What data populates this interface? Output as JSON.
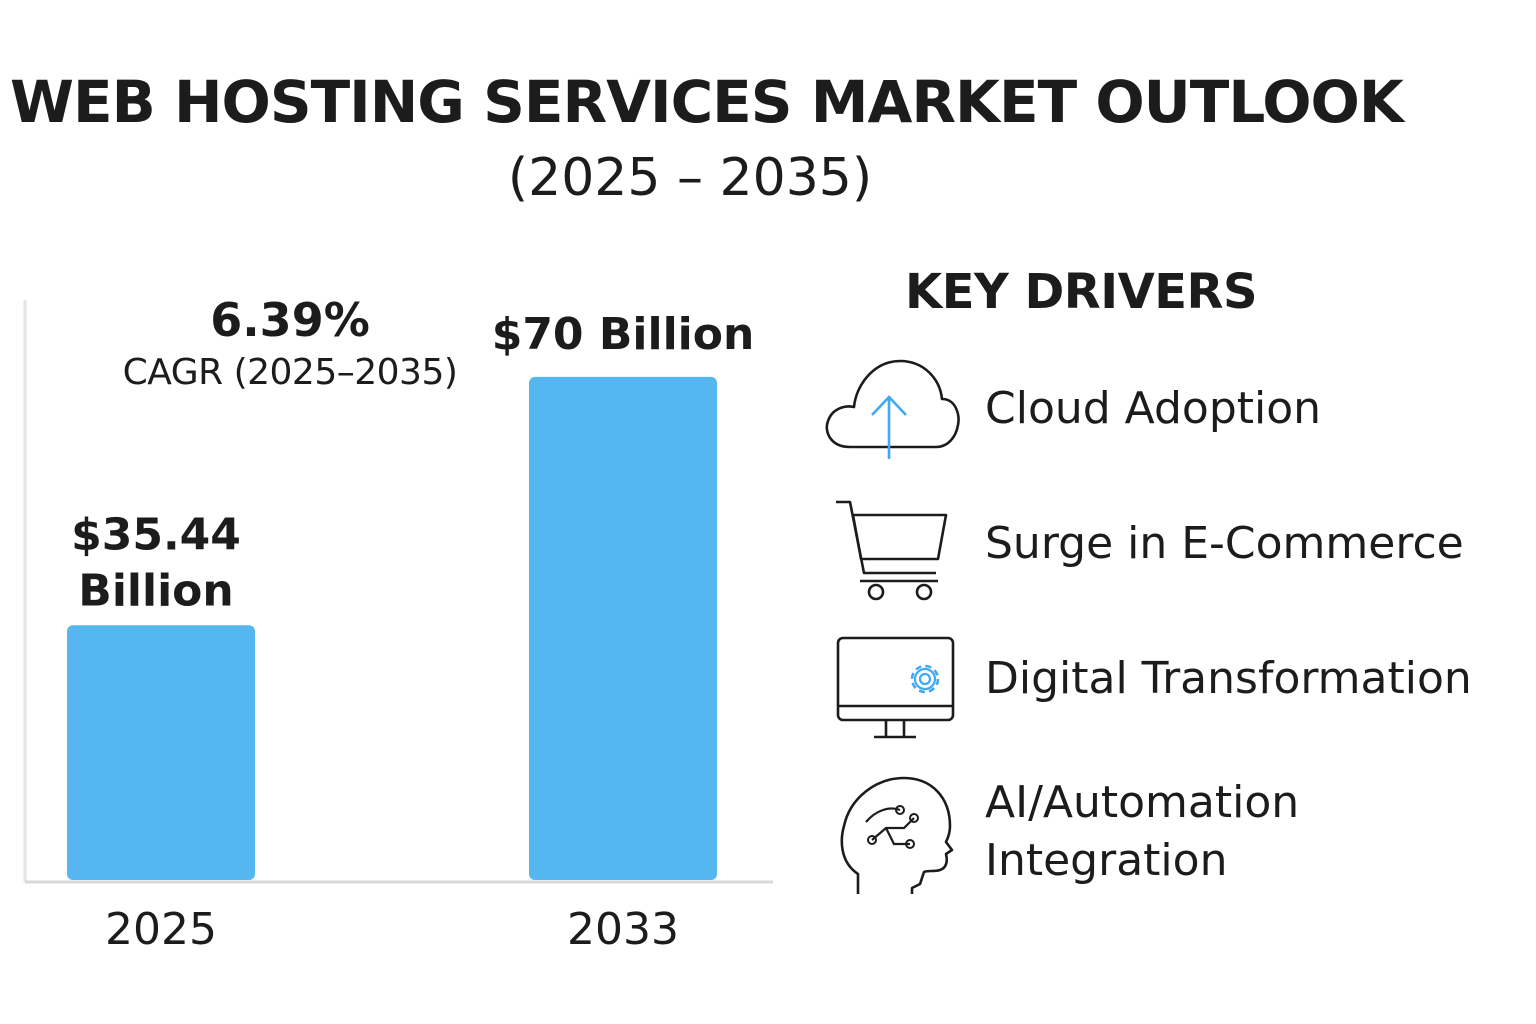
{
  "header": {
    "title": "WEB HOSTING SERVICES MARKET OUTLOOK",
    "subtitle": "(2025 – 2035)"
  },
  "cagr": {
    "value": "6.39%",
    "label": "CAGR (2025–2035)"
  },
  "chart_data": {
    "type": "bar",
    "title": "WEB HOSTING SERVICES MARKET OUTLOOK (2025 – 2035)",
    "categories": [
      "2025",
      "2033"
    ],
    "values": [
      35.44,
      70
    ],
    "value_labels": [
      "$35.44 Billion",
      "$70 Billion"
    ],
    "unit": "Billion USD",
    "xlabel": "",
    "ylabel": "",
    "ylim": [
      0,
      80
    ],
    "grid": false,
    "bar_color": "#55b6f0"
  },
  "drivers": {
    "heading": "KEY DRIVERS",
    "items": [
      {
        "label": "Cloud Adoption",
        "icon": "cloud-upload-icon"
      },
      {
        "label": "Surge in E-Commerce",
        "icon": "shopping-cart-icon"
      },
      {
        "label": "Digital Transformation",
        "icon": "monitor-gear-icon"
      },
      {
        "label": "AI/Automation Integration",
        "icon": "ai-head-icon"
      }
    ]
  },
  "colors": {
    "accent": "#3fa9f5",
    "bar": "#55b6f0",
    "text": "#1c1c1c",
    "axis": "#d9d9d9"
  }
}
